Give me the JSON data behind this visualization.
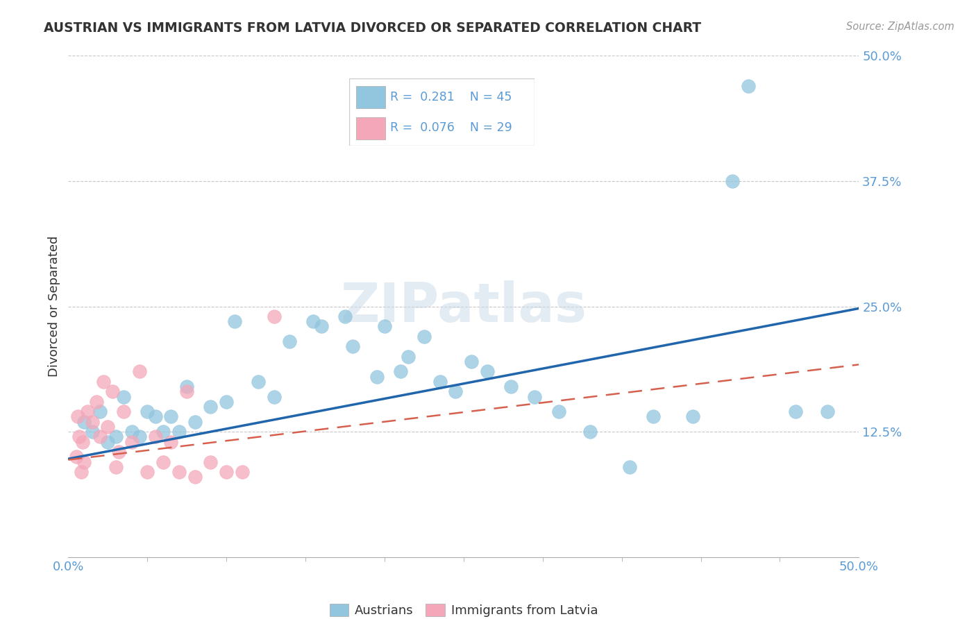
{
  "title": "AUSTRIAN VS IMMIGRANTS FROM LATVIA DIVORCED OR SEPARATED CORRELATION CHART",
  "source": "Source: ZipAtlas.com",
  "ylabel": "Divorced or Separated",
  "xlim": [
    0.0,
    0.5
  ],
  "ylim": [
    0.0,
    0.5
  ],
  "ytick_vals": [
    0.125,
    0.25,
    0.375,
    0.5
  ],
  "ytick_labels": [
    "12.5%",
    "25.0%",
    "37.5%",
    "50.0%"
  ],
  "xtick_vals": [
    0.0,
    0.5
  ],
  "xtick_labels": [
    "0.0%",
    "50.0%"
  ],
  "legend_labels": [
    "Austrians",
    "Immigrants from Latvia"
  ],
  "R_austrians": 0.281,
  "N_austrians": 45,
  "R_immigrants": 0.076,
  "N_immigrants": 29,
  "watermark": "ZIPatlas",
  "blue_color": "#92C5DE",
  "pink_color": "#F4A7B9",
  "blue_line_color": "#2166AC",
  "pink_line_color": "#D6604D",
  "title_color": "#333333",
  "axis_label_color": "#4472C4",
  "tick_label_color": "#5B9BD5",
  "grid_color": "#C8C8C8",
  "aus_x": [
    0.01,
    0.015,
    0.02,
    0.025,
    0.03,
    0.035,
    0.04,
    0.045,
    0.05,
    0.055,
    0.06,
    0.065,
    0.07,
    0.075,
    0.08,
    0.09,
    0.1,
    0.105,
    0.12,
    0.13,
    0.14,
    0.155,
    0.16,
    0.175,
    0.18,
    0.195,
    0.2,
    0.21,
    0.215,
    0.225,
    0.235,
    0.245,
    0.255,
    0.265,
    0.28,
    0.295,
    0.31,
    0.33,
    0.355,
    0.37,
    0.395,
    0.42,
    0.43,
    0.46,
    0.48
  ],
  "aus_y": [
    0.135,
    0.125,
    0.145,
    0.115,
    0.12,
    0.16,
    0.125,
    0.12,
    0.145,
    0.14,
    0.125,
    0.14,
    0.125,
    0.17,
    0.135,
    0.15,
    0.155,
    0.235,
    0.175,
    0.16,
    0.215,
    0.235,
    0.23,
    0.24,
    0.21,
    0.18,
    0.23,
    0.185,
    0.2,
    0.22,
    0.175,
    0.165,
    0.195,
    0.185,
    0.17,
    0.16,
    0.145,
    0.125,
    0.09,
    0.14,
    0.14,
    0.375,
    0.47,
    0.145,
    0.145
  ],
  "imm_x": [
    0.005,
    0.006,
    0.007,
    0.008,
    0.009,
    0.01,
    0.012,
    0.015,
    0.018,
    0.02,
    0.022,
    0.025,
    0.028,
    0.03,
    0.032,
    0.035,
    0.04,
    0.045,
    0.05,
    0.055,
    0.06,
    0.065,
    0.07,
    0.075,
    0.08,
    0.09,
    0.1,
    0.11,
    0.13
  ],
  "imm_y": [
    0.1,
    0.14,
    0.12,
    0.085,
    0.115,
    0.095,
    0.145,
    0.135,
    0.155,
    0.12,
    0.175,
    0.13,
    0.165,
    0.09,
    0.105,
    0.145,
    0.115,
    0.185,
    0.085,
    0.12,
    0.095,
    0.115,
    0.085,
    0.165,
    0.08,
    0.095,
    0.085,
    0.085,
    0.24
  ]
}
